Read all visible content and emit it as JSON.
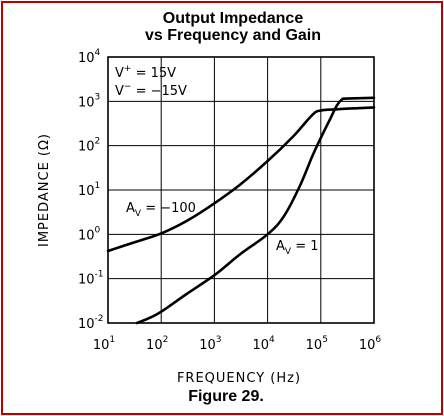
{
  "caption": "Figure 29.",
  "chart_data": {
    "type": "line",
    "title_line1": "Output Impedance",
    "title_line2": "vs Frequency and Gain",
    "xlabel": "FREQUENCY (Hz)",
    "ylabel": "IMPEDANCE (Ω)",
    "x_scale": "log",
    "y_scale": "log",
    "xlim": [
      10,
      1000000
    ],
    "ylim": [
      0.01,
      10000
    ],
    "grid": true,
    "x_ticks": [
      {
        "base": "10",
        "exp": "1",
        "value": 10
      },
      {
        "base": "10",
        "exp": "2",
        "value": 100
      },
      {
        "base": "10",
        "exp": "3",
        "value": 1000
      },
      {
        "base": "10",
        "exp": "4",
        "value": 10000
      },
      {
        "base": "10",
        "exp": "5",
        "value": 100000
      },
      {
        "base": "10",
        "exp": "6",
        "value": 1000000
      }
    ],
    "y_ticks": [
      {
        "base": "10",
        "exp": "-2",
        "value": 0.01
      },
      {
        "base": "10",
        "exp": "-1",
        "value": 0.1
      },
      {
        "base": "10",
        "exp": "0",
        "value": 1
      },
      {
        "base": "10",
        "exp": "1",
        "value": 10
      },
      {
        "base": "10",
        "exp": "2",
        "value": 100
      },
      {
        "base": "10",
        "exp": "3",
        "value": 1000
      },
      {
        "base": "10",
        "exp": "4",
        "value": 10000
      }
    ],
    "annotations": {
      "vplus": {
        "main": "V",
        "sup": "+",
        "rest": " = 15V"
      },
      "vminus": {
        "main": "V",
        "sup": "−",
        "rest": " = −15V"
      },
      "gain100": {
        "main": "A",
        "sub": "V",
        "rest": " = −100"
      },
      "gain1": {
        "main": "A",
        "sub": "V",
        "rest": " = 1"
      }
    },
    "series": [
      {
        "label_ref": "gain100",
        "x": [
          10,
          30,
          100,
          300,
          1000,
          3000,
          10000,
          30000,
          70000,
          100000,
          200000,
          500000,
          1000000
        ],
        "y": [
          0.42,
          0.65,
          1.05,
          2.0,
          5.0,
          13,
          45,
          160,
          500,
          620,
          660,
          700,
          730
        ]
      },
      {
        "label_ref": "gain1",
        "x": [
          35,
          60,
          100,
          300,
          1000,
          3000,
          10000,
          20000,
          40000,
          70000,
          100000,
          150000,
          200000,
          250000,
          300000,
          1000000
        ],
        "y": [
          0.01,
          0.013,
          0.018,
          0.045,
          0.12,
          0.35,
          1.0,
          2.5,
          12,
          60,
          150,
          400,
          800,
          1100,
          1150,
          1200
        ]
      }
    ]
  }
}
